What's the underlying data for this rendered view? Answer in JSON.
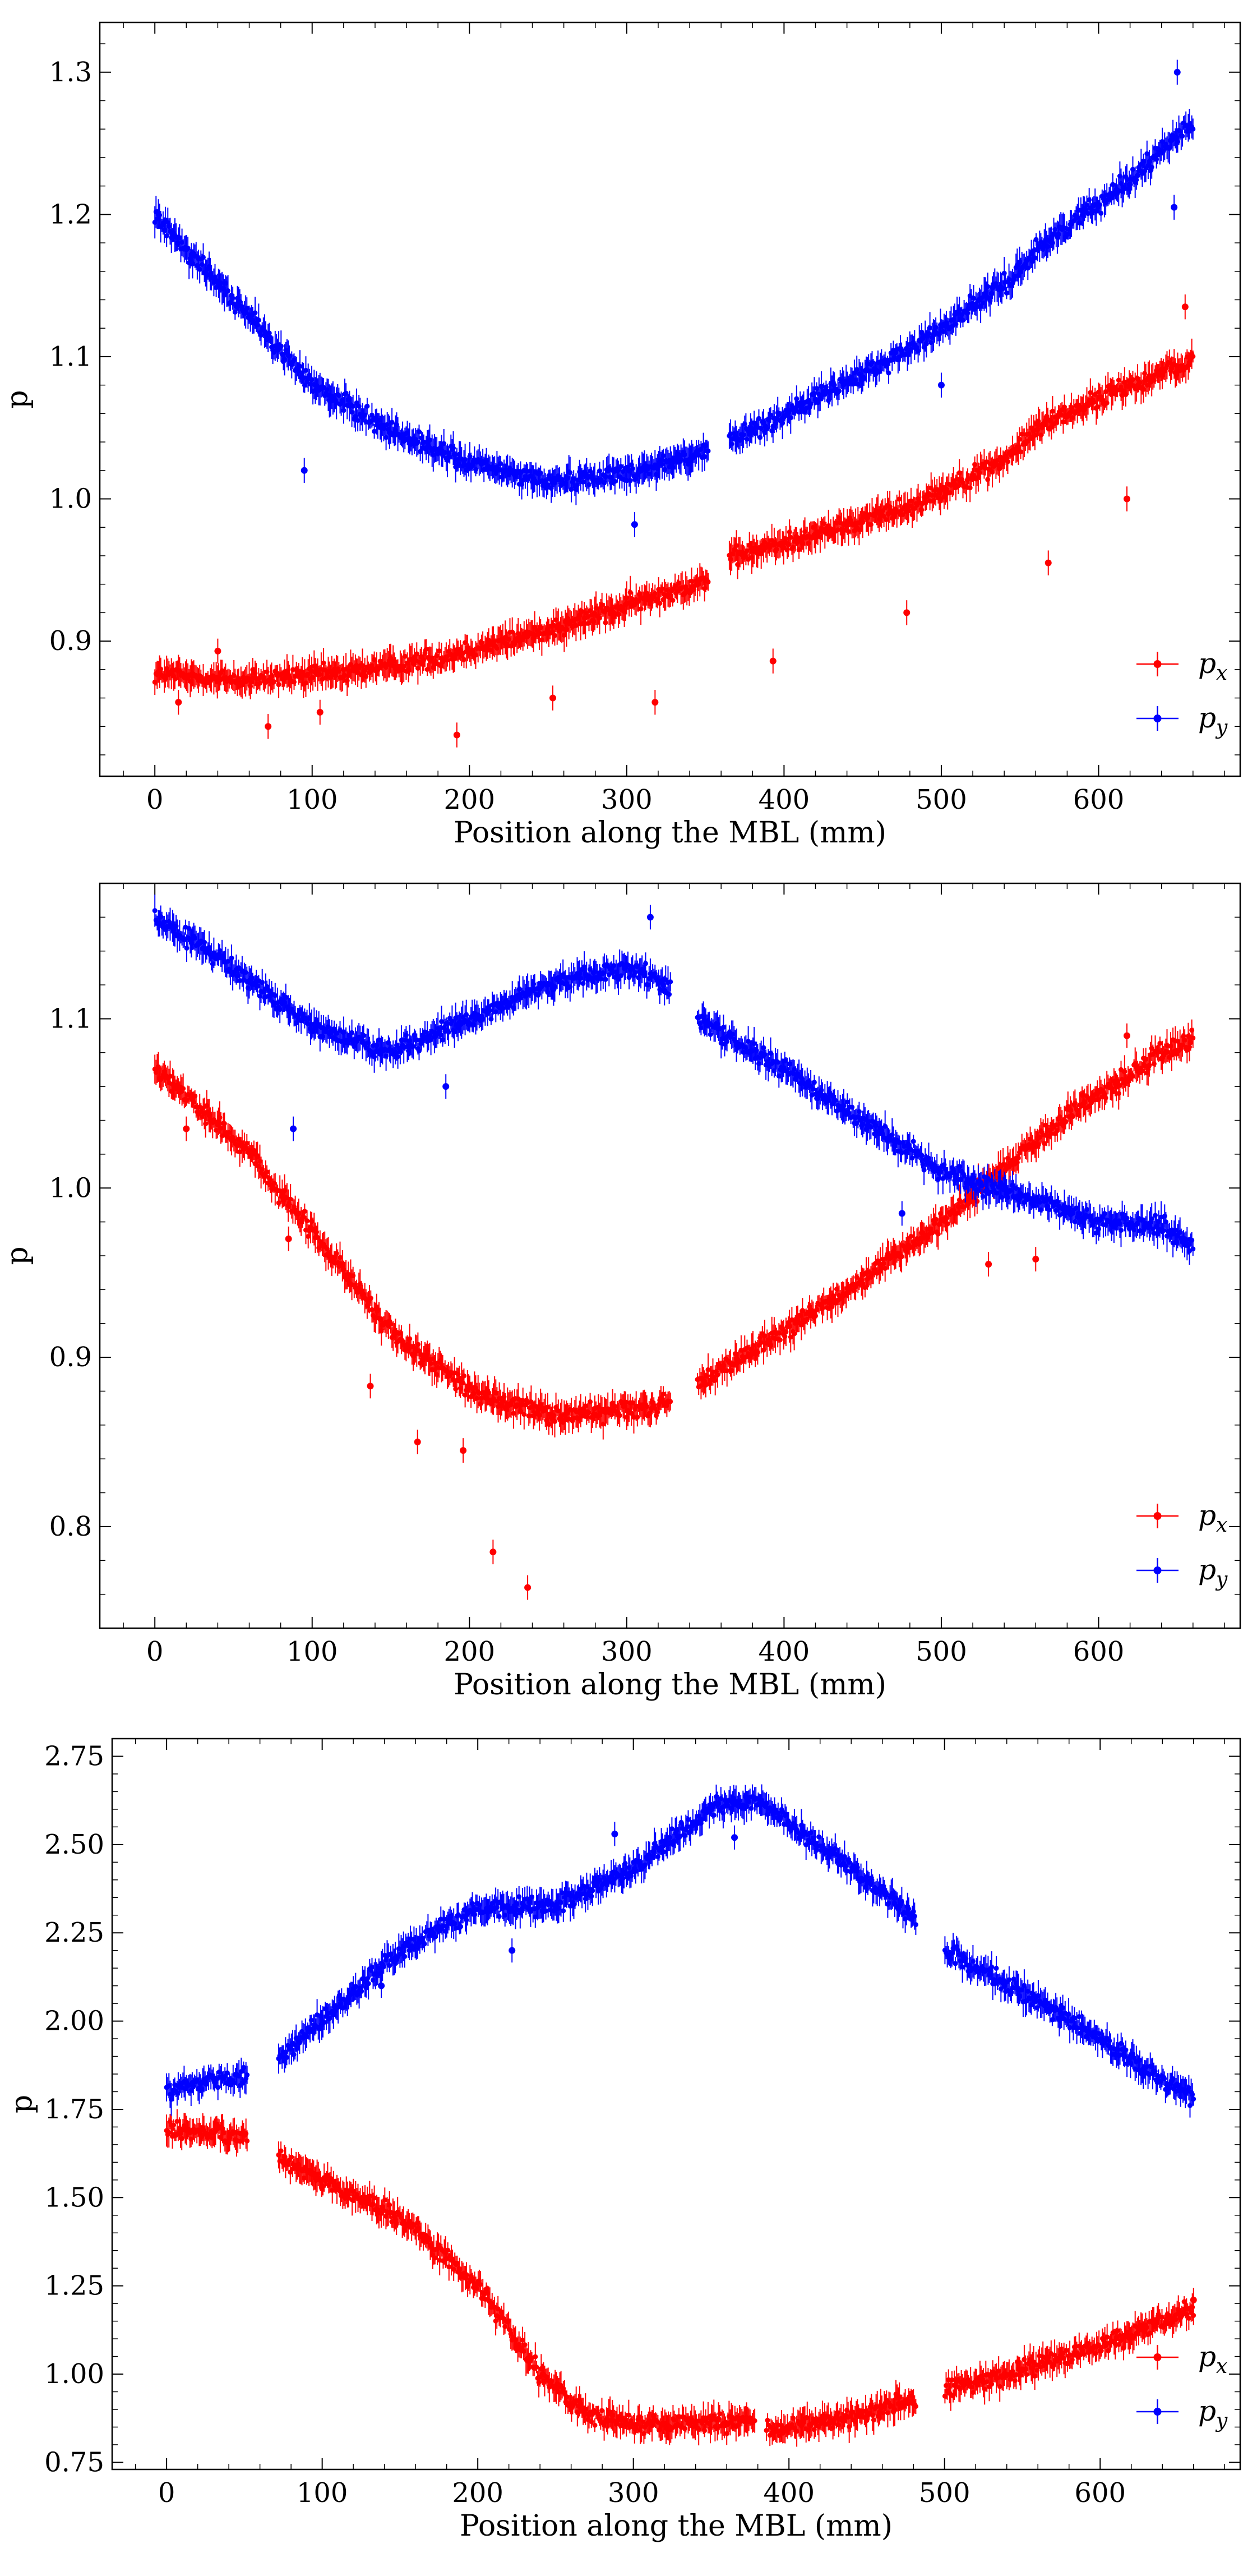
{
  "chart_data": [
    {
      "type": "scatter",
      "panel": "top",
      "xlabel": "Position along the MBL (mm)",
      "ylabel": "p",
      "xlim": [
        -35,
        690
      ],
      "ylim": [
        0.805,
        1.335
      ],
      "xticks": [
        0,
        100,
        200,
        300,
        400,
        500,
        600
      ],
      "xtick_labels": [
        "0",
        "100",
        "200",
        "300",
        "400",
        "500",
        "600"
      ],
      "yticks": [
        0.9,
        1.0,
        1.1,
        1.2,
        1.3
      ],
      "ytick_labels": [
        "0.9",
        "1.0",
        "1.1",
        "1.2",
        "1.3"
      ],
      "legend_position": "lower-right",
      "series": [
        {
          "name": "p_x",
          "label_main": "p",
          "label_sub": "x",
          "color": "#ff0000",
          "gap": [
            352,
            365
          ],
          "curve": [
            [
              0,
              0.877
            ],
            [
              60,
              0.872
            ],
            [
              120,
              0.878
            ],
            [
              180,
              0.888
            ],
            [
              240,
              0.905
            ],
            [
              300,
              0.925
            ],
            [
              350,
              0.943
            ],
            [
              365,
              0.958
            ],
            [
              420,
              0.975
            ],
            [
              480,
              0.995
            ],
            [
              545,
              1.03
            ],
            [
              560,
              1.05
            ],
            [
              620,
              1.08
            ],
            [
              660,
              1.097
            ]
          ],
          "outliers": [
            [
              15,
              0.857
            ],
            [
              40,
              0.893
            ],
            [
              72,
              0.84
            ],
            [
              105,
              0.85
            ],
            [
              192,
              0.834
            ],
            [
              253,
              0.86
            ],
            [
              318,
              0.857
            ],
            [
              393,
              0.886
            ],
            [
              478,
              0.92
            ],
            [
              568,
              0.955
            ],
            [
              618,
              1.0
            ],
            [
              655,
              1.135
            ]
          ]
        },
        {
          "name": "p_y",
          "label_main": "p",
          "label_sub": "y",
          "color": "#0000ff",
          "gap": [
            352,
            365
          ],
          "curve": [
            [
              0,
              1.2
            ],
            [
              50,
              1.14
            ],
            [
              100,
              1.08
            ],
            [
              150,
              1.048
            ],
            [
              200,
              1.025
            ],
            [
              250,
              1.012
            ],
            [
              300,
              1.018
            ],
            [
              350,
              1.033
            ],
            [
              365,
              1.04
            ],
            [
              420,
              1.07
            ],
            [
              480,
              1.105
            ],
            [
              545,
              1.155
            ],
            [
              560,
              1.175
            ],
            [
              620,
              1.225
            ],
            [
              660,
              1.265
            ]
          ],
          "outliers": [
            [
              95,
              1.02
            ],
            [
              305,
              0.982
            ],
            [
              500,
              1.08
            ],
            [
              648,
              1.205
            ],
            [
              650,
              1.3
            ]
          ]
        }
      ]
    },
    {
      "type": "scatter",
      "panel": "middle",
      "xlabel": "Position along the MBL (mm)",
      "ylabel": "p",
      "xlim": [
        -35,
        690
      ],
      "ylim": [
        0.74,
        1.18
      ],
      "xticks": [
        0,
        100,
        200,
        300,
        400,
        500,
        600
      ],
      "xtick_labels": [
        "0",
        "100",
        "200",
        "300",
        "400",
        "500",
        "600"
      ],
      "yticks": [
        0.8,
        0.9,
        1.0,
        1.1
      ],
      "ytick_labels": [
        "0.8",
        "0.9",
        "1.0",
        "1.1"
      ],
      "legend_position": "lower-right",
      "series": [
        {
          "name": "p_x",
          "label_main": "p",
          "label_sub": "x",
          "color": "#ff0000",
          "gap": [
            328,
            345
          ],
          "curve": [
            [
              0,
              1.07
            ],
            [
              50,
              1.03
            ],
            [
              100,
              0.975
            ],
            [
              150,
              0.915
            ],
            [
              200,
              0.88
            ],
            [
              250,
              0.866
            ],
            [
              300,
              0.868
            ],
            [
              328,
              0.872
            ],
            [
              345,
              0.885
            ],
            [
              400,
              0.915
            ],
            [
              450,
              0.945
            ],
            [
              500,
              0.98
            ],
            [
              550,
              1.02
            ],
            [
              600,
              1.055
            ],
            [
              640,
              1.08
            ],
            [
              660,
              1.088
            ]
          ],
          "outliers": [
            [
              20,
              1.035
            ],
            [
              85,
              0.97
            ],
            [
              137,
              0.883
            ],
            [
              167,
              0.85
            ],
            [
              196,
              0.845
            ],
            [
              215,
              0.785
            ],
            [
              237,
              0.764
            ],
            [
              530,
              0.955
            ],
            [
              560,
              0.958
            ],
            [
              618,
              1.09
            ]
          ]
        },
        {
          "name": "p_y",
          "label_main": "p",
          "label_sub": "y",
          "color": "#0000ff",
          "gap": [
            328,
            345
          ],
          "curve": [
            [
              0,
              1.16
            ],
            [
              50,
              1.13
            ],
            [
              100,
              1.095
            ],
            [
              150,
              1.08
            ],
            [
              200,
              1.1
            ],
            [
              250,
              1.12
            ],
            [
              300,
              1.13
            ],
            [
              328,
              1.12
            ],
            [
              345,
              1.1
            ],
            [
              400,
              1.07
            ],
            [
              450,
              1.04
            ],
            [
              500,
              1.01
            ],
            [
              550,
              0.995
            ],
            [
              600,
              0.98
            ],
            [
              640,
              0.978
            ],
            [
              660,
              0.965
            ]
          ],
          "outliers": [
            [
              88,
              1.035
            ],
            [
              185,
              1.06
            ],
            [
              315,
              1.16
            ],
            [
              475,
              0.985
            ]
          ]
        }
      ]
    },
    {
      "type": "scatter",
      "panel": "bottom",
      "xlabel": "Position along the MBL (mm)",
      "ylabel": "p",
      "xlim": [
        -35,
        690
      ],
      "ylim": [
        0.73,
        2.8
      ],
      "xticks": [
        0,
        100,
        200,
        300,
        400,
        500,
        600
      ],
      "xtick_labels": [
        "0",
        "100",
        "200",
        "300",
        "400",
        "500",
        "600"
      ],
      "yticks": [
        0.75,
        1.0,
        1.25,
        1.5,
        1.75,
        2.0,
        2.25,
        2.5,
        2.75
      ],
      "ytick_labels": [
        "0.75",
        "1.00",
        "1.25",
        "1.50",
        "1.75",
        "2.00",
        "2.25",
        "2.50",
        "2.75"
      ],
      "legend_position": "lower-right",
      "series": [
        {
          "name": "p_x",
          "label_main": "p",
          "label_sub": "x",
          "color": "#ff0000",
          "gaps": [
            [
              52,
              72
            ],
            [
              378,
              385
            ],
            [
              482,
              500
            ]
          ],
          "curve": [
            [
              0,
              1.69
            ],
            [
              50,
              1.68
            ],
            [
              72,
              1.61
            ],
            [
              100,
              1.55
            ],
            [
              150,
              1.44
            ],
            [
              200,
              1.25
            ],
            [
              240,
              1.0
            ],
            [
              270,
              0.88
            ],
            [
              300,
              0.86
            ],
            [
              350,
              0.86
            ],
            [
              378,
              0.87
            ],
            [
              385,
              0.84
            ],
            [
              420,
              0.86
            ],
            [
              482,
              0.93
            ],
            [
              500,
              0.96
            ],
            [
              550,
              1.01
            ],
            [
              600,
              1.08
            ],
            [
              660,
              1.19
            ]
          ],
          "outliers": [
            [
              660,
              1.21
            ]
          ]
        },
        {
          "name": "p_y",
          "label_main": "p",
          "label_sub": "y",
          "color": "#0000ff",
          "gaps": [
            [
              52,
              72
            ],
            [
              482,
              500
            ]
          ],
          "curve": [
            [
              0,
              1.8
            ],
            [
              50,
              1.85
            ],
            [
              72,
              1.89
            ],
            [
              100,
              2.0
            ],
            [
              150,
              2.2
            ],
            [
              200,
              2.32
            ],
            [
              250,
              2.33
            ],
            [
              300,
              2.43
            ],
            [
              350,
              2.6
            ],
            [
              380,
              2.63
            ],
            [
              400,
              2.56
            ],
            [
              450,
              2.4
            ],
            [
              482,
              2.29
            ],
            [
              500,
              2.2
            ],
            [
              550,
              2.08
            ],
            [
              600,
              1.95
            ],
            [
              640,
              1.83
            ],
            [
              660,
              1.78
            ]
          ],
          "outliers": [
            [
              138,
              2.1
            ],
            [
              222,
              2.2
            ],
            [
              288,
              2.53
            ],
            [
              365,
              2.52
            ]
          ]
        }
      ]
    }
  ]
}
